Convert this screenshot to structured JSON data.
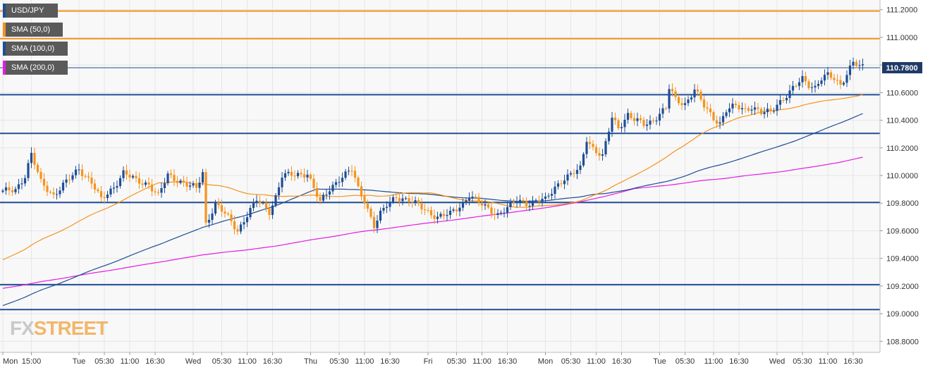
{
  "chart_data": {
    "type": "candlestick",
    "symbol": "USD/JPY",
    "legend": [
      {
        "label": "USD/JPY",
        "color": "#1f4e96"
      },
      {
        "label": "SMA (50,0)",
        "color": "#f5931d"
      },
      {
        "label": "SMA (100,0)",
        "color": "#1f4e96"
      },
      {
        "label": "SMA (200,0)",
        "color": "#e31ee3"
      }
    ],
    "ylim": [
      108.72,
      111.27
    ],
    "y_ticks": [
      "111.2000",
      "111.0000",
      "110.8000",
      "110.6000",
      "110.4000",
      "110.2000",
      "110.0000",
      "109.8000",
      "109.6000",
      "109.4000",
      "109.2000",
      "109.0000",
      "108.8000"
    ],
    "current_price": "110.7800",
    "x_ticks": [
      {
        "label": "Mon",
        "i": 0
      },
      {
        "label": "15:00",
        "i": 9
      },
      {
        "label": "Tue",
        "i": 24
      },
      {
        "label": "05:30",
        "i": 32
      },
      {
        "label": "11:00",
        "i": 40
      },
      {
        "label": "16:30",
        "i": 48
      },
      {
        "label": "Wed",
        "i": 60
      },
      {
        "label": "05:30",
        "i": 69
      },
      {
        "label": "11:00",
        "i": 77
      },
      {
        "label": "16:30",
        "i": 85
      },
      {
        "label": "Thu",
        "i": 97
      },
      {
        "label": "05:30",
        "i": 106
      },
      {
        "label": "11:00",
        "i": 114
      },
      {
        "label": "16:30",
        "i": 122
      },
      {
        "label": "Fri",
        "i": 134
      },
      {
        "label": "05:30",
        "i": 143
      },
      {
        "label": "11:00",
        "i": 151
      },
      {
        "label": "16:30",
        "i": 159
      },
      {
        "label": "Mon",
        "i": 171
      },
      {
        "label": "05:30",
        "i": 179
      },
      {
        "label": "11:00",
        "i": 187
      },
      {
        "label": "16:30",
        "i": 195
      },
      {
        "label": "Tue",
        "i": 207
      },
      {
        "label": "05:30",
        "i": 215
      },
      {
        "label": "11:00",
        "i": 224
      },
      {
        "label": "16:30",
        "i": 232
      },
      {
        "label": "Wed",
        "i": 244
      },
      {
        "label": "05:30",
        "i": 252
      },
      {
        "label": "11:00",
        "i": 260
      },
      {
        "label": "16:30",
        "i": 268
      }
    ],
    "horizontal_lines": [
      {
        "value": 111.19,
        "color": "#f5931d"
      },
      {
        "value": 110.99,
        "color": "#f5931d"
      },
      {
        "value": 110.585,
        "color": "#1f4e96"
      },
      {
        "value": 110.305,
        "color": "#1f4e96"
      },
      {
        "value": 109.805,
        "color": "#1f4e96"
      },
      {
        "value": 109.21,
        "color": "#1f4e96"
      },
      {
        "value": 109.03,
        "color": "#1f4e96"
      }
    ],
    "price_line": {
      "value": 110.78,
      "color": "#1f4e96"
    },
    "anchors": [
      [
        0,
        109.88
      ],
      [
        4,
        109.9
      ],
      [
        7,
        110.0
      ],
      [
        9,
        110.15
      ],
      [
        12,
        109.95
      ],
      [
        16,
        109.86
      ],
      [
        20,
        109.95
      ],
      [
        24,
        110.05
      ],
      [
        28,
        109.95
      ],
      [
        31,
        109.82
      ],
      [
        35,
        109.92
      ],
      [
        38,
        110.02
      ],
      [
        42,
        109.96
      ],
      [
        46,
        109.94
      ],
      [
        49,
        109.85
      ],
      [
        52,
        110.0
      ],
      [
        56,
        109.96
      ],
      [
        61,
        109.9
      ],
      [
        63,
        110.02
      ],
      [
        64,
        109.65
      ],
      [
        67,
        109.8
      ],
      [
        70,
        109.72
      ],
      [
        74,
        109.6
      ],
      [
        77,
        109.72
      ],
      [
        80,
        109.82
      ],
      [
        84,
        109.74
      ],
      [
        86,
        109.85
      ],
      [
        88,
        110.0
      ],
      [
        92,
        110.0
      ],
      [
        96,
        110.02
      ],
      [
        100,
        109.8
      ],
      [
        103,
        109.9
      ],
      [
        106,
        109.98
      ],
      [
        110,
        110.04
      ],
      [
        112,
        109.9
      ],
      [
        114,
        109.82
      ],
      [
        117,
        109.64
      ],
      [
        119,
        109.72
      ],
      [
        121,
        109.78
      ],
      [
        124,
        109.85
      ],
      [
        128,
        109.82
      ],
      [
        131,
        109.78
      ],
      [
        134,
        109.74
      ],
      [
        137,
        109.7
      ],
      [
        141,
        109.72
      ],
      [
        145,
        109.8
      ],
      [
        147,
        109.86
      ],
      [
        150,
        109.8
      ],
      [
        153,
        109.76
      ],
      [
        156,
        109.72
      ],
      [
        159,
        109.76
      ],
      [
        162,
        109.82
      ],
      [
        166,
        109.8
      ],
      [
        169,
        109.82
      ],
      [
        171,
        109.82
      ],
      [
        174,
        109.92
      ],
      [
        177,
        109.98
      ],
      [
        179,
        110.0
      ],
      [
        182,
        110.05
      ],
      [
        184,
        110.27
      ],
      [
        186,
        110.2
      ],
      [
        189,
        110.13
      ],
      [
        192,
        110.42
      ],
      [
        194,
        110.35
      ],
      [
        197,
        110.44
      ],
      [
        199,
        110.4
      ],
      [
        202,
        110.37
      ],
      [
        205,
        110.4
      ],
      [
        207,
        110.45
      ],
      [
        209,
        110.48
      ],
      [
        210,
        110.63
      ],
      [
        212,
        110.55
      ],
      [
        215,
        110.52
      ],
      [
        218,
        110.62
      ],
      [
        221,
        110.5
      ],
      [
        224,
        110.42
      ],
      [
        226,
        110.38
      ],
      [
        228,
        110.47
      ],
      [
        231,
        110.5
      ],
      [
        234,
        110.48
      ],
      [
        236,
        110.5
      ],
      [
        239,
        110.45
      ],
      [
        242,
        110.46
      ],
      [
        244,
        110.52
      ],
      [
        246,
        110.56
      ],
      [
        248,
        110.6
      ],
      [
        250,
        110.65
      ],
      [
        252,
        110.7
      ],
      [
        254,
        110.66
      ],
      [
        256,
        110.64
      ],
      [
        258,
        110.7
      ],
      [
        260,
        110.72
      ],
      [
        262,
        110.7
      ],
      [
        264,
        110.66
      ],
      [
        266,
        110.74
      ],
      [
        268,
        110.82
      ],
      [
        270,
        110.78
      ]
    ]
  },
  "logo": {
    "part1": "FX",
    "part2": "STREET"
  }
}
